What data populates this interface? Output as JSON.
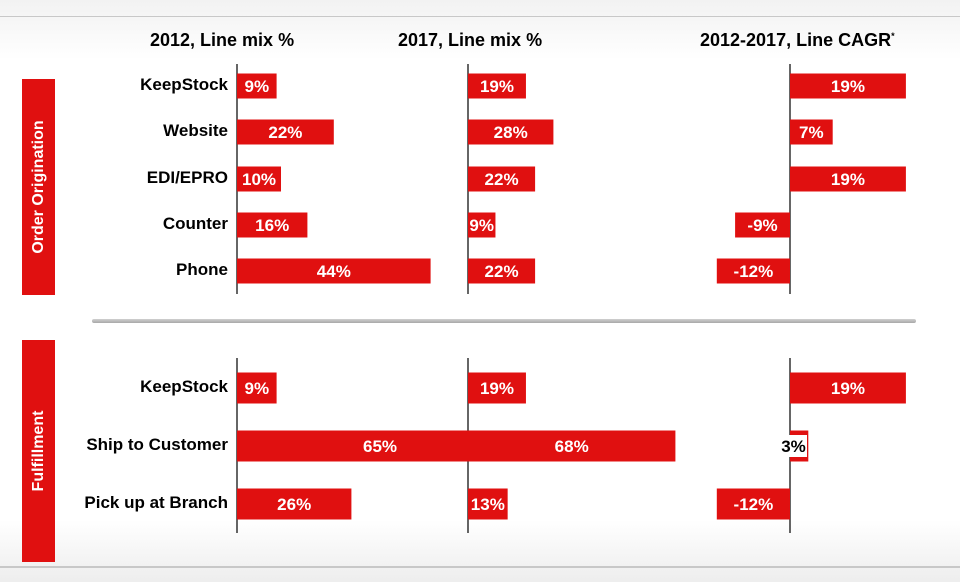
{
  "titles": {
    "col1": "2012, Line mix %",
    "col2": "2017, Line mix %",
    "col3": "2012-2017, Line CAGR",
    "col3_sup": "*"
  },
  "sections": {
    "order": "Order Origination",
    "fulfillment": "Fulfillment"
  },
  "colors": {
    "bar": "#e01010",
    "axis": "#000000"
  },
  "chart_data": {
    "type": "bar",
    "orientation": "horizontal",
    "unit": "%",
    "groups": [
      {
        "name": "Order Origination",
        "categories": [
          "KeepStock",
          "Website",
          "EDI/EPRO",
          "Counter",
          "Phone"
        ],
        "series": [
          {
            "name": "2012, Line mix %",
            "values": [
              9,
              22,
              10,
              16,
              44
            ],
            "labels": [
              "9%",
              "22%",
              "10%",
              "16%",
              "44%"
            ]
          },
          {
            "name": "2017, Line mix %",
            "values": [
              19,
              28,
              22,
              9,
              22
            ],
            "labels": [
              "19%",
              "28%",
              "22%",
              "9%",
              "22%"
            ]
          },
          {
            "name": "2012-2017, Line CAGR",
            "values": [
              19,
              7,
              19,
              -9,
              -12
            ],
            "labels": [
              "19%",
              "7%",
              "19%",
              "-9%",
              "-12%"
            ]
          }
        ]
      },
      {
        "name": "Fulfillment",
        "categories": [
          "KeepStock",
          "Ship to Customer",
          "Pick up at Branch"
        ],
        "series": [
          {
            "name": "2012, Line mix %",
            "values": [
              9,
              65,
              26
            ],
            "labels": [
              "9%",
              "65%",
              "26%"
            ]
          },
          {
            "name": "2017, Line mix %",
            "values": [
              19,
              68,
              13
            ],
            "labels": [
              "19%",
              "68%",
              "13%"
            ]
          },
          {
            "name": "2012-2017, Line CAGR",
            "values": [
              19,
              3,
              -12
            ],
            "labels": [
              "19%",
              "3%",
              "-12%"
            ]
          }
        ]
      }
    ]
  }
}
